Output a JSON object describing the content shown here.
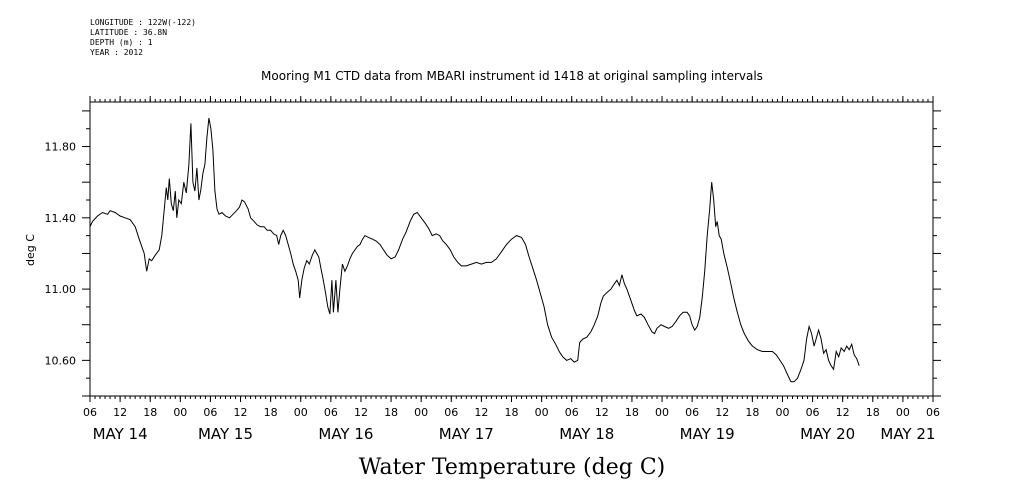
{
  "header": {
    "lines": [
      "LONGITUDE : 122W(-122)",
      "LATITUDE : 36.8N",
      "DEPTH (m) : 1",
      "YEAR : 2012"
    ]
  },
  "chart_data": {
    "type": "line",
    "title": "Mooring M1 CTD data from MBARI instrument id 1418 at original sampling intervals",
    "xlabel": "Water Temperature (deg C)",
    "ylabel": "deg C",
    "ylim": [
      10.4,
      12.05
    ],
    "xlim": [
      6,
      174
    ],
    "yticks": [
      10.6,
      11.0,
      11.4,
      11.8
    ],
    "ytick_labels": [
      "10.60",
      "11.00",
      "11.40",
      "11.80"
    ],
    "xtick_hours": [
      6,
      12,
      18,
      24,
      30,
      36,
      42,
      48,
      54,
      60,
      66,
      72,
      78,
      84,
      90,
      96,
      102,
      108,
      114,
      120,
      126,
      132,
      138,
      144,
      150,
      156,
      162,
      168,
      174
    ],
    "xtick_labels": [
      "06",
      "12",
      "18",
      "00",
      "06",
      "12",
      "18",
      "00",
      "06",
      "12",
      "18",
      "00",
      "06",
      "12",
      "18",
      "00",
      "06",
      "12",
      "18",
      "00",
      "06",
      "12",
      "18",
      "00",
      "06",
      "12",
      "18",
      "00",
      "06"
    ],
    "day_labels": [
      {
        "label": "MAY 14",
        "hour": 12
      },
      {
        "label": "MAY 15",
        "hour": 33
      },
      {
        "label": "MAY 16",
        "hour": 57
      },
      {
        "label": "MAY 17",
        "hour": 81
      },
      {
        "label": "MAY 18",
        "hour": 105
      },
      {
        "label": "MAY 19",
        "hour": 129
      },
      {
        "label": "MAY 20",
        "hour": 153
      },
      {
        "label": "MAY 21",
        "hour": 169
      }
    ],
    "x_unit": "hours since 2012-05-14 00:00",
    "series": [
      {
        "points": [
          [
            6.0,
            11.35
          ],
          [
            6.5,
            11.38
          ],
          [
            7.5,
            11.41
          ],
          [
            8.5,
            11.43
          ],
          [
            9.5,
            11.42
          ],
          [
            10.0,
            11.44
          ],
          [
            11.0,
            11.43
          ],
          [
            12.0,
            11.41
          ],
          [
            13.0,
            11.4
          ],
          [
            14.0,
            11.39
          ],
          [
            15.0,
            11.35
          ],
          [
            15.8,
            11.28
          ],
          [
            16.3,
            11.24
          ],
          [
            16.8,
            11.2
          ],
          [
            17.3,
            11.1
          ],
          [
            17.8,
            11.17
          ],
          [
            18.3,
            11.16
          ],
          [
            19.0,
            11.19
          ],
          [
            19.8,
            11.22
          ],
          [
            20.3,
            11.3
          ],
          [
            20.8,
            11.45
          ],
          [
            21.2,
            11.57
          ],
          [
            21.5,
            11.5
          ],
          [
            21.8,
            11.62
          ],
          [
            22.2,
            11.48
          ],
          [
            22.6,
            11.44
          ],
          [
            23.0,
            11.55
          ],
          [
            23.3,
            11.4
          ],
          [
            23.7,
            11.5
          ],
          [
            24.2,
            11.48
          ],
          [
            24.7,
            11.6
          ],
          [
            25.2,
            11.54
          ],
          [
            25.7,
            11.7
          ],
          [
            26.1,
            11.93
          ],
          [
            26.5,
            11.6
          ],
          [
            26.9,
            11.55
          ],
          [
            27.3,
            11.68
          ],
          [
            27.7,
            11.5
          ],
          [
            28.1,
            11.56
          ],
          [
            28.5,
            11.65
          ],
          [
            28.9,
            11.7
          ],
          [
            29.3,
            11.85
          ],
          [
            29.7,
            11.96
          ],
          [
            30.1,
            11.9
          ],
          [
            30.5,
            11.78
          ],
          [
            30.9,
            11.55
          ],
          [
            31.3,
            11.45
          ],
          [
            31.7,
            11.42
          ],
          [
            32.3,
            11.43
          ],
          [
            33.0,
            11.41
          ],
          [
            33.8,
            11.4
          ],
          [
            34.5,
            11.42
          ],
          [
            35.2,
            11.44
          ],
          [
            35.8,
            11.46
          ],
          [
            36.3,
            11.5
          ],
          [
            36.8,
            11.49
          ],
          [
            37.5,
            11.45
          ],
          [
            38.0,
            11.4
          ],
          [
            38.7,
            11.38
          ],
          [
            39.3,
            11.36
          ],
          [
            40.0,
            11.35
          ],
          [
            40.7,
            11.35
          ],
          [
            41.3,
            11.33
          ],
          [
            42.0,
            11.33
          ],
          [
            42.6,
            11.31
          ],
          [
            43.2,
            11.3
          ],
          [
            43.6,
            11.25
          ],
          [
            44.0,
            11.3
          ],
          [
            44.5,
            11.33
          ],
          [
            45.0,
            11.3
          ],
          [
            45.5,
            11.25
          ],
          [
            46.0,
            11.2
          ],
          [
            46.5,
            11.14
          ],
          [
            47.0,
            11.1
          ],
          [
            47.5,
            11.05
          ],
          [
            47.8,
            10.95
          ],
          [
            48.2,
            11.05
          ],
          [
            48.7,
            11.12
          ],
          [
            49.2,
            11.16
          ],
          [
            49.7,
            11.14
          ],
          [
            50.3,
            11.19
          ],
          [
            50.8,
            11.22
          ],
          [
            51.2,
            11.2
          ],
          [
            51.6,
            11.18
          ],
          [
            52.0,
            11.12
          ],
          [
            52.5,
            11.05
          ],
          [
            53.0,
            10.97
          ],
          [
            53.4,
            10.9
          ],
          [
            53.8,
            10.86
          ],
          [
            54.2,
            11.05
          ],
          [
            54.5,
            10.87
          ],
          [
            55.0,
            11.05
          ],
          [
            55.4,
            10.87
          ],
          [
            55.8,
            11.0
          ],
          [
            56.3,
            11.14
          ],
          [
            56.8,
            11.1
          ],
          [
            57.3,
            11.13
          ],
          [
            57.8,
            11.17
          ],
          [
            58.3,
            11.2
          ],
          [
            58.8,
            11.22
          ],
          [
            59.3,
            11.24
          ],
          [
            59.8,
            11.25
          ],
          [
            60.3,
            11.28
          ],
          [
            60.8,
            11.3
          ],
          [
            61.5,
            11.29
          ],
          [
            62.3,
            11.28
          ],
          [
            63.0,
            11.27
          ],
          [
            63.8,
            11.25
          ],
          [
            64.5,
            11.22
          ],
          [
            65.2,
            11.19
          ],
          [
            66.0,
            11.17
          ],
          [
            66.8,
            11.18
          ],
          [
            67.5,
            11.22
          ],
          [
            68.3,
            11.28
          ],
          [
            69.0,
            11.32
          ],
          [
            69.8,
            11.38
          ],
          [
            70.5,
            11.42
          ],
          [
            71.2,
            11.43
          ],
          [
            72.0,
            11.4
          ],
          [
            72.8,
            11.37
          ],
          [
            73.5,
            11.34
          ],
          [
            74.2,
            11.3
          ],
          [
            75.0,
            11.31
          ],
          [
            75.7,
            11.3
          ],
          [
            76.3,
            11.27
          ],
          [
            77.0,
            11.25
          ],
          [
            77.8,
            11.22
          ],
          [
            78.5,
            11.18
          ],
          [
            79.3,
            11.15
          ],
          [
            80.0,
            11.13
          ],
          [
            81.0,
            11.13
          ],
          [
            82.0,
            11.14
          ],
          [
            83.0,
            11.15
          ],
          [
            84.0,
            11.14
          ],
          [
            85.0,
            11.15
          ],
          [
            86.0,
            11.15
          ],
          [
            87.0,
            11.17
          ],
          [
            88.0,
            11.21
          ],
          [
            89.0,
            11.25
          ],
          [
            90.0,
            11.28
          ],
          [
            91.0,
            11.3
          ],
          [
            92.0,
            11.29
          ],
          [
            92.8,
            11.25
          ],
          [
            93.5,
            11.18
          ],
          [
            94.2,
            11.12
          ],
          [
            95.0,
            11.05
          ],
          [
            95.8,
            10.97
          ],
          [
            96.5,
            10.9
          ],
          [
            97.2,
            10.8
          ],
          [
            98.0,
            10.73
          ],
          [
            98.8,
            10.69
          ],
          [
            99.5,
            10.65
          ],
          [
            100.2,
            10.62
          ],
          [
            101.0,
            10.6
          ],
          [
            101.8,
            10.61
          ],
          [
            102.5,
            10.59
          ],
          [
            103.2,
            10.6
          ],
          [
            103.6,
            10.7
          ],
          [
            104.2,
            10.72
          ],
          [
            105.0,
            10.73
          ],
          [
            105.8,
            10.76
          ],
          [
            106.5,
            10.8
          ],
          [
            107.2,
            10.85
          ],
          [
            107.8,
            10.92
          ],
          [
            108.3,
            10.96
          ],
          [
            109.0,
            10.98
          ],
          [
            109.8,
            11.0
          ],
          [
            110.5,
            11.03
          ],
          [
            111.0,
            11.05
          ],
          [
            111.5,
            11.02
          ],
          [
            112.0,
            11.08
          ],
          [
            112.5,
            11.03
          ],
          [
            113.0,
            11.0
          ],
          [
            113.5,
            10.96
          ],
          [
            114.0,
            10.92
          ],
          [
            114.5,
            10.88
          ],
          [
            115.0,
            10.85
          ],
          [
            115.8,
            10.86
          ],
          [
            116.5,
            10.84
          ],
          [
            117.2,
            10.8
          ],
          [
            118.0,
            10.76
          ],
          [
            118.5,
            10.75
          ],
          [
            119.0,
            10.78
          ],
          [
            119.8,
            10.8
          ],
          [
            120.5,
            10.79
          ],
          [
            121.3,
            10.78
          ],
          [
            122.0,
            10.79
          ],
          [
            122.8,
            10.82
          ],
          [
            123.5,
            10.85
          ],
          [
            124.2,
            10.87
          ],
          [
            125.0,
            10.87
          ],
          [
            125.5,
            10.85
          ],
          [
            126.0,
            10.8
          ],
          [
            126.5,
            10.77
          ],
          [
            127.0,
            10.79
          ],
          [
            127.5,
            10.84
          ],
          [
            128.0,
            10.95
          ],
          [
            128.5,
            11.1
          ],
          [
            129.0,
            11.3
          ],
          [
            129.5,
            11.45
          ],
          [
            129.9,
            11.6
          ],
          [
            130.3,
            11.5
          ],
          [
            130.7,
            11.35
          ],
          [
            131.0,
            11.38
          ],
          [
            131.4,
            11.3
          ],
          [
            131.8,
            11.28
          ],
          [
            132.3,
            11.2
          ],
          [
            133.0,
            11.12
          ],
          [
            133.7,
            11.03
          ],
          [
            134.3,
            10.95
          ],
          [
            135.0,
            10.87
          ],
          [
            135.7,
            10.8
          ],
          [
            136.4,
            10.75
          ],
          [
            137.2,
            10.71
          ],
          [
            138.0,
            10.68
          ],
          [
            139.0,
            10.66
          ],
          [
            140.0,
            10.65
          ],
          [
            141.0,
            10.65
          ],
          [
            142.0,
            10.65
          ],
          [
            142.8,
            10.63
          ],
          [
            143.5,
            10.6
          ],
          [
            144.2,
            10.57
          ],
          [
            145.0,
            10.52
          ],
          [
            145.7,
            10.48
          ],
          [
            146.3,
            10.48
          ],
          [
            147.0,
            10.5
          ],
          [
            147.7,
            10.55
          ],
          [
            148.3,
            10.6
          ],
          [
            148.8,
            10.72
          ],
          [
            149.3,
            10.79
          ],
          [
            149.8,
            10.75
          ],
          [
            150.3,
            10.68
          ],
          [
            150.7,
            10.72
          ],
          [
            151.2,
            10.77
          ],
          [
            151.7,
            10.72
          ],
          [
            152.2,
            10.64
          ],
          [
            152.7,
            10.66
          ],
          [
            153.2,
            10.6
          ],
          [
            153.7,
            10.57
          ],
          [
            154.2,
            10.55
          ],
          [
            154.7,
            10.65
          ],
          [
            155.2,
            10.62
          ],
          [
            155.7,
            10.67
          ],
          [
            156.3,
            10.65
          ],
          [
            156.8,
            10.68
          ],
          [
            157.3,
            10.66
          ],
          [
            157.8,
            10.69
          ],
          [
            158.3,
            10.63
          ],
          [
            158.8,
            10.61
          ],
          [
            159.3,
            10.57
          ]
        ]
      }
    ]
  }
}
